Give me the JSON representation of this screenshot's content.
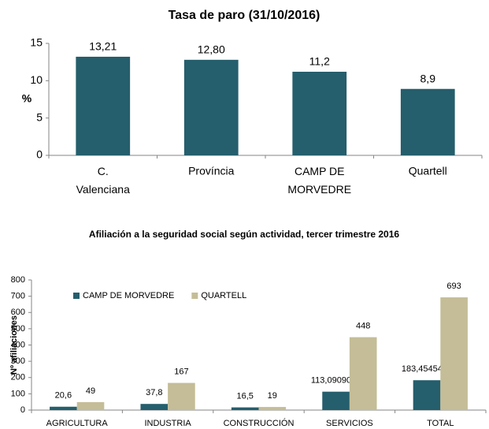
{
  "chart_data": [
    {
      "type": "bar",
      "title": "Tasa de paro (31/10/2016)",
      "ylabel": "%",
      "categories": [
        "C. Valenciana",
        "Província",
        "CAMP DE MORVEDRE",
        "Quartell"
      ],
      "values": [
        13.21,
        12.8,
        11.2,
        8.9
      ],
      "value_labels": [
        "13,21",
        "12,80",
        "11,2",
        "8,9"
      ],
      "color": "#255e6c",
      "ylim": [
        0,
        15
      ],
      "yticks": [
        0,
        5,
        10,
        15
      ],
      "grid": false
    },
    {
      "type": "bar",
      "title": "Afiliación a la seguridad social según actividad, tercer trimestre 2016",
      "ylabel": "Nº afiliaciones",
      "categories": [
        "AGRICULTURA",
        "INDUSTRIA",
        "CONSTRUCCIÓN",
        "SERVICIOS",
        "TOTAL"
      ],
      "series": [
        {
          "name": "CAMP DE MORVEDRE",
          "color": "#255e6c",
          "values": [
            20.6,
            37.8,
            16.5,
            113.0909091,
            183.4545455
          ],
          "value_labels": [
            "20,6",
            "37,8",
            "16,5",
            "113,0909091",
            "183,4545455"
          ]
        },
        {
          "name": "QUARTELL",
          "color": "#c4bd97",
          "values": [
            49,
            167,
            19,
            448,
            693
          ]
        }
      ],
      "ylim": [
        0,
        800
      ],
      "yticks": [
        0,
        100,
        200,
        300,
        400,
        500,
        600,
        700,
        800
      ],
      "grid": false,
      "legend": "top-left"
    }
  ]
}
